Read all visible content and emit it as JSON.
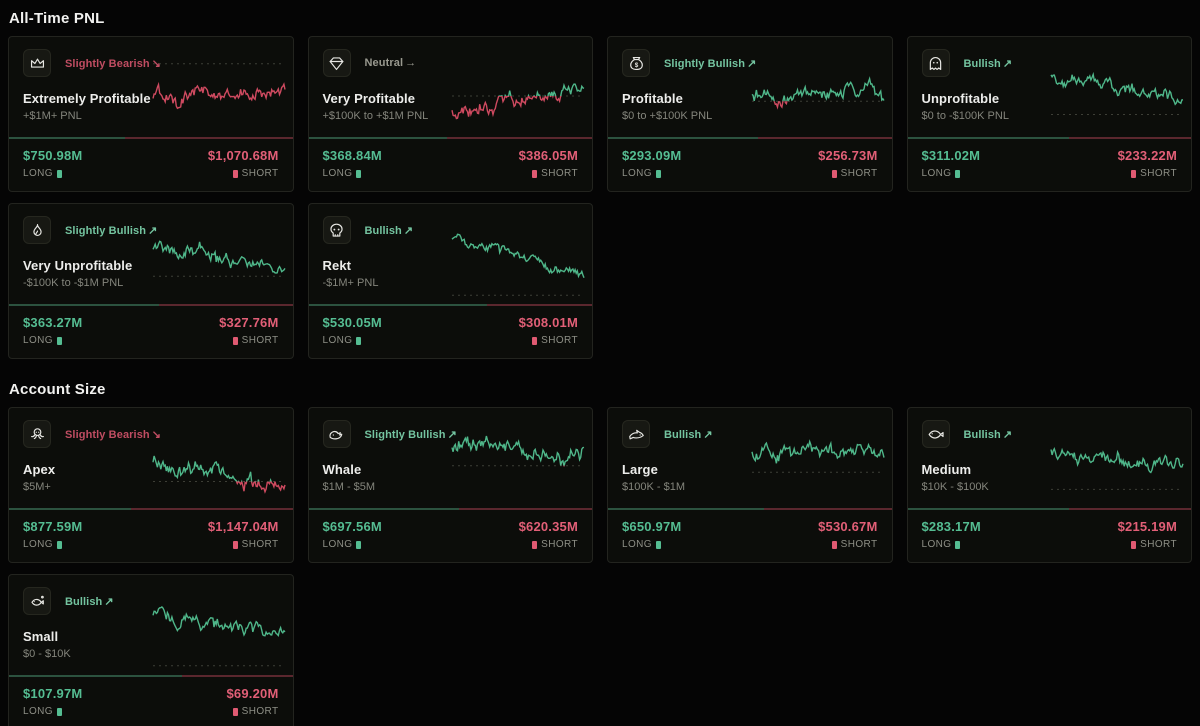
{
  "labels": {
    "long": "LONG",
    "short": "SHORT"
  },
  "colors": {
    "bearish": "#c04d62",
    "bullish": "#74c4a0",
    "neutral": "#99998f",
    "line_green": "#4fb78a",
    "line_red": "#cf4a60",
    "value_green": "#55bd92",
    "value_red": "#e25f77"
  },
  "sections": [
    {
      "title": "All-Time PNL",
      "cards": [
        {
          "icon": "crown-icon",
          "sentiment": {
            "label": "Slightly Bearish",
            "arrow": "↘",
            "tone": "bearish"
          },
          "name": "Extremely Profitable",
          "range": "+$1M+ PNL",
          "long": "$750.98M",
          "short": "$1,070.68M",
          "long_ratio": 0.41,
          "spark": {
            "seed": 101,
            "start": 0.5,
            "end": 0.58,
            "vol": 1.0,
            "baseline": 0.99
          }
        },
        {
          "icon": "gem-icon",
          "sentiment": {
            "label": "Neutral",
            "arrow": "→",
            "tone": "neutral"
          },
          "name": "Very Profitable",
          "range": "+$100K to +$1M PNL",
          "long": "$368.84M",
          "short": "$386.05M",
          "long_ratio": 0.49,
          "spark": {
            "seed": 202,
            "start": 0.3,
            "end": 0.72,
            "vol": 0.9,
            "baseline": 0.5
          }
        },
        {
          "icon": "money-bag-icon",
          "sentiment": {
            "label": "Slightly Bullish",
            "arrow": "↗",
            "tone": "bullish"
          },
          "name": "Profitable",
          "range": "$0 to +$100K PNL",
          "long": "$293.09M",
          "short": "$256.73M",
          "long_ratio": 0.53,
          "spark": {
            "seed": 303,
            "start": 0.52,
            "end": 0.55,
            "vol": 1.0,
            "baseline": 0.42
          }
        },
        {
          "icon": "ghost-icon",
          "sentiment": {
            "label": "Bullish",
            "arrow": "↗",
            "tone": "bullish"
          },
          "name": "Unprofitable",
          "range": "$0 to -$100K PNL",
          "long": "$311.02M",
          "short": "$233.22M",
          "long_ratio": 0.57,
          "spark": {
            "seed": 404,
            "start": 0.8,
            "end": 0.42,
            "vol": 0.85,
            "baseline": 0.22
          }
        },
        {
          "icon": "flame-icon",
          "sentiment": {
            "label": "Slightly Bullish",
            "arrow": "↗",
            "tone": "bullish"
          },
          "name": "Very Unprofitable",
          "range": "-$100K to -$1M PNL",
          "long": "$363.27M",
          "short": "$327.76M",
          "long_ratio": 0.53,
          "spark": {
            "seed": 505,
            "start": 0.75,
            "end": 0.34,
            "vol": 0.9,
            "baseline": 0.3
          }
        },
        {
          "icon": "skull-icon",
          "sentiment": {
            "label": "Bullish",
            "arrow": "↗",
            "tone": "bullish"
          },
          "name": "Rekt",
          "range": "-$1M+ PNL",
          "long": "$530.05M",
          "short": "$308.01M",
          "long_ratio": 0.63,
          "spark": {
            "seed": 606,
            "start": 0.88,
            "end": 0.3,
            "vol": 0.7,
            "baseline": 0.01
          }
        }
      ]
    },
    {
      "title": "Account Size",
      "cards": [
        {
          "icon": "octopus-icon",
          "sentiment": {
            "label": "Slightly Bearish",
            "arrow": "↘",
            "tone": "bearish"
          },
          "name": "Apex",
          "range": "$5M+",
          "long": "$877.59M",
          "short": "$1,147.04M",
          "long_ratio": 0.43,
          "spark": {
            "seed": 707,
            "start": 0.58,
            "end": 0.14,
            "vol": 1.0,
            "baseline": 0.28
          }
        },
        {
          "icon": "whale-icon",
          "sentiment": {
            "label": "Slightly Bullish",
            "arrow": "↗",
            "tone": "bullish"
          },
          "name": "Whale",
          "range": "$1M - $5M",
          "long": "$697.56M",
          "short": "$620.35M",
          "long_ratio": 0.53,
          "spark": {
            "seed": 808,
            "start": 0.78,
            "end": 0.7,
            "vol": 1.05,
            "baseline": 0.52
          }
        },
        {
          "icon": "shark-icon",
          "sentiment": {
            "label": "Bullish",
            "arrow": "↗",
            "tone": "bullish"
          },
          "name": "Large",
          "range": "$100K - $1M",
          "long": "$650.97M",
          "short": "$530.67M",
          "long_ratio": 0.55,
          "spark": {
            "seed": 909,
            "start": 0.7,
            "end": 0.74,
            "vol": 0.95,
            "baseline": 0.42
          }
        },
        {
          "icon": "fish-icon",
          "sentiment": {
            "label": "Bullish",
            "arrow": "↗",
            "tone": "bullish"
          },
          "name": "Medium",
          "range": "$10K - $100K",
          "long": "$283.17M",
          "short": "$215.19M",
          "long_ratio": 0.57,
          "spark": {
            "seed": 1010,
            "start": 0.72,
            "end": 0.56,
            "vol": 0.85,
            "baseline": 0.16
          }
        },
        {
          "icon": "small-fish-icon",
          "sentiment": {
            "label": "Bullish",
            "arrow": "↗",
            "tone": "bullish"
          },
          "name": "Small",
          "range": "$0 - $10K",
          "long": "$107.97M",
          "short": "$69.20M",
          "long_ratio": 0.61,
          "spark": {
            "seed": 1111,
            "start": 0.8,
            "end": 0.45,
            "vol": 0.9,
            "baseline": 0.02
          }
        }
      ]
    }
  ]
}
